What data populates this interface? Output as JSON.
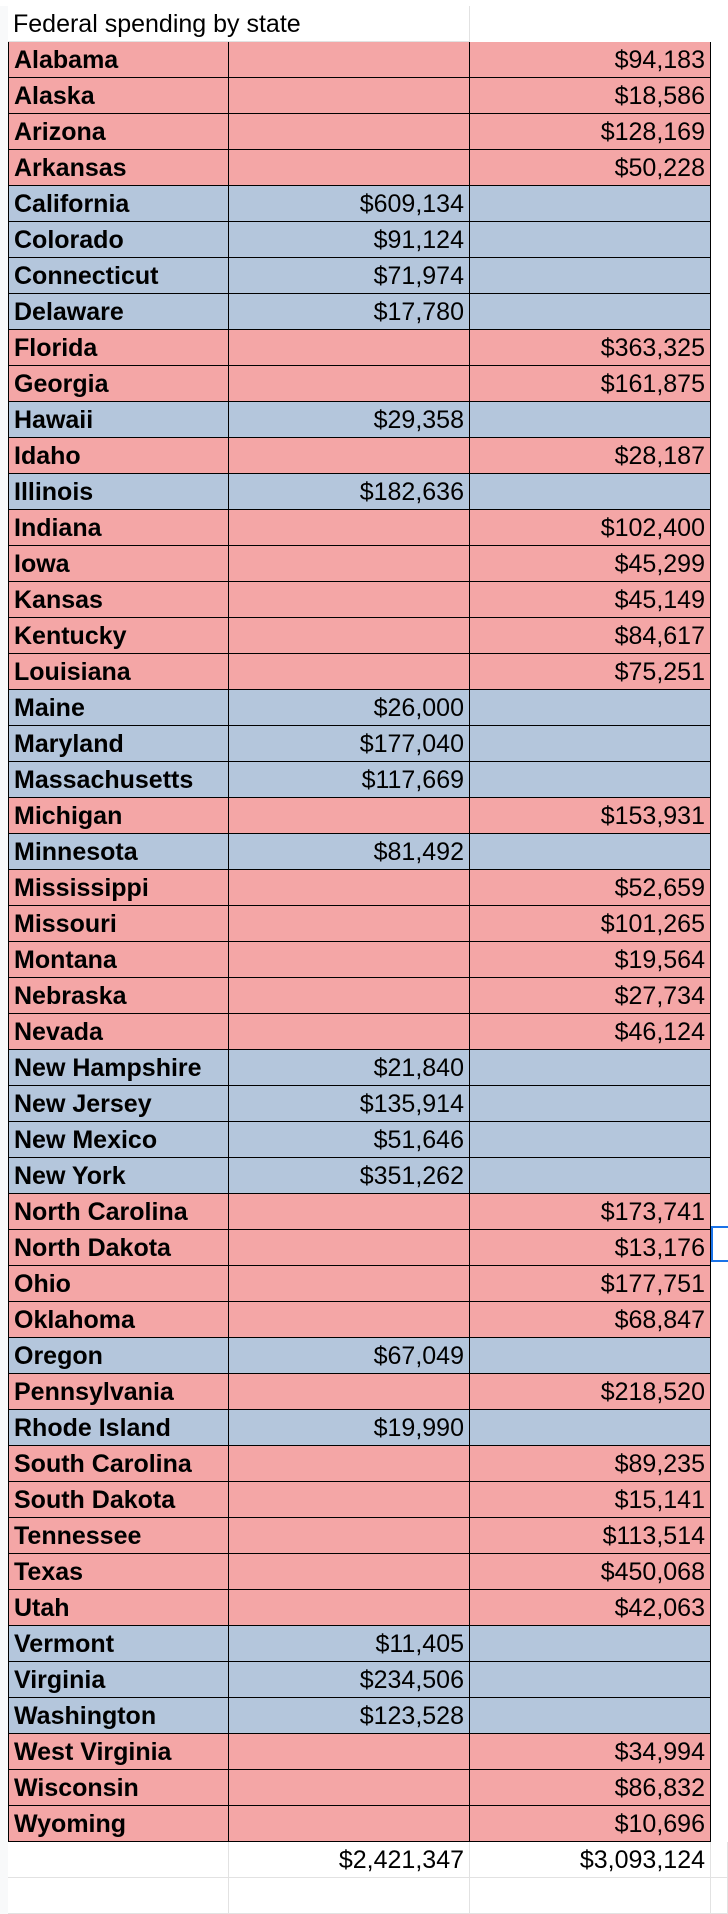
{
  "sheet": {
    "title": "Federal spending by state",
    "rows": [
      {
        "state": "Alabama",
        "blue": "",
        "red": "$94,183",
        "color": "r"
      },
      {
        "state": "Alaska",
        "blue": "",
        "red": "$18,586",
        "color": "r"
      },
      {
        "state": "Arizona",
        "blue": "",
        "red": "$128,169",
        "color": "r"
      },
      {
        "state": "Arkansas",
        "blue": "",
        "red": "$50,228",
        "color": "r"
      },
      {
        "state": "California",
        "blue": "$609,134",
        "red": "",
        "color": "b"
      },
      {
        "state": "Colorado",
        "blue": "$91,124",
        "red": "",
        "color": "b"
      },
      {
        "state": "Connecticut",
        "blue": "$71,974",
        "red": "",
        "color": "b"
      },
      {
        "state": "Delaware",
        "blue": "$17,780",
        "red": "",
        "color": "b"
      },
      {
        "state": "Florida",
        "blue": "",
        "red": "$363,325",
        "color": "r"
      },
      {
        "state": "Georgia",
        "blue": "",
        "red": "$161,875",
        "color": "r"
      },
      {
        "state": "Hawaii",
        "blue": "$29,358",
        "red": "",
        "color": "b"
      },
      {
        "state": "Idaho",
        "blue": "",
        "red": "$28,187",
        "color": "r"
      },
      {
        "state": "Illinois",
        "blue": "$182,636",
        "red": "",
        "color": "b"
      },
      {
        "state": "Indiana",
        "blue": "",
        "red": "$102,400",
        "color": "r"
      },
      {
        "state": "Iowa",
        "blue": "",
        "red": "$45,299",
        "color": "r"
      },
      {
        "state": "Kansas",
        "blue": "",
        "red": "$45,149",
        "color": "r"
      },
      {
        "state": "Kentucky",
        "blue": "",
        "red": "$84,617",
        "color": "r"
      },
      {
        "state": "Louisiana",
        "blue": "",
        "red": "$75,251",
        "color": "r"
      },
      {
        "state": "Maine",
        "blue": "$26,000",
        "red": "",
        "color": "b"
      },
      {
        "state": "Maryland",
        "blue": "$177,040",
        "red": "",
        "color": "b"
      },
      {
        "state": "Massachusetts",
        "blue": "$117,669",
        "red": "",
        "color": "b"
      },
      {
        "state": "Michigan",
        "blue": "",
        "red": "$153,931",
        "color": "r"
      },
      {
        "state": "Minnesota",
        "blue": "$81,492",
        "red": "",
        "color": "b"
      },
      {
        "state": "Mississippi",
        "blue": "",
        "red": "$52,659",
        "color": "r"
      },
      {
        "state": "Missouri",
        "blue": "",
        "red": "$101,265",
        "color": "r"
      },
      {
        "state": "Montana",
        "blue": "",
        "red": "$19,564",
        "color": "r"
      },
      {
        "state": "Nebraska",
        "blue": "",
        "red": "$27,734",
        "color": "r"
      },
      {
        "state": "Nevada",
        "blue": "",
        "red": "$46,124",
        "color": "r"
      },
      {
        "state": "New Hampshire",
        "blue": "$21,840",
        "red": "",
        "color": "b"
      },
      {
        "state": "New Jersey",
        "blue": "$135,914",
        "red": "",
        "color": "b"
      },
      {
        "state": "New Mexico",
        "blue": "$51,646",
        "red": "",
        "color": "b"
      },
      {
        "state": "New York",
        "blue": "$351,262",
        "red": "",
        "color": "b"
      },
      {
        "state": "North Carolina",
        "blue": "",
        "red": "$173,741",
        "color": "r"
      },
      {
        "state": "North Dakota",
        "blue": "",
        "red": "$13,176",
        "color": "r"
      },
      {
        "state": "Ohio",
        "blue": "",
        "red": "$177,751",
        "color": "r"
      },
      {
        "state": "Oklahoma",
        "blue": "",
        "red": "$68,847",
        "color": "r"
      },
      {
        "state": "Oregon",
        "blue": "$67,049",
        "red": "",
        "color": "b"
      },
      {
        "state": "Pennsylvania",
        "blue": "",
        "red": "$218,520",
        "color": "r"
      },
      {
        "state": "Rhode Island",
        "blue": "$19,990",
        "red": "",
        "color": "b"
      },
      {
        "state": "South Carolina",
        "blue": "",
        "red": "$89,235",
        "color": "r"
      },
      {
        "state": "South Dakota",
        "blue": "",
        "red": "$15,141",
        "color": "r"
      },
      {
        "state": "Tennessee",
        "blue": "",
        "red": "$113,514",
        "color": "r"
      },
      {
        "state": "Texas",
        "blue": "",
        "red": "$450,068",
        "color": "r"
      },
      {
        "state": "Utah",
        "blue": "",
        "red": "$42,063",
        "color": "r"
      },
      {
        "state": "Vermont",
        "blue": "$11,405",
        "red": "",
        "color": "b"
      },
      {
        "state": "Virginia",
        "blue": "$234,506",
        "red": "",
        "color": "b"
      },
      {
        "state": "Washington",
        "blue": "$123,528",
        "red": "",
        "color": "b"
      },
      {
        "state": "West Virginia",
        "blue": "",
        "red": "$34,994",
        "color": "r"
      },
      {
        "state": "Wisconsin",
        "blue": "",
        "red": "$86,832",
        "color": "r"
      },
      {
        "state": "Wyoming",
        "blue": "",
        "red": "$10,696",
        "color": "r"
      }
    ],
    "totals": {
      "blue": "$2,421,347",
      "red": "$3,093,124"
    },
    "colors": {
      "red_fill": "#f4a6a6",
      "blue_fill": "#b4c6dc",
      "selection": "#1a73e8"
    }
  }
}
